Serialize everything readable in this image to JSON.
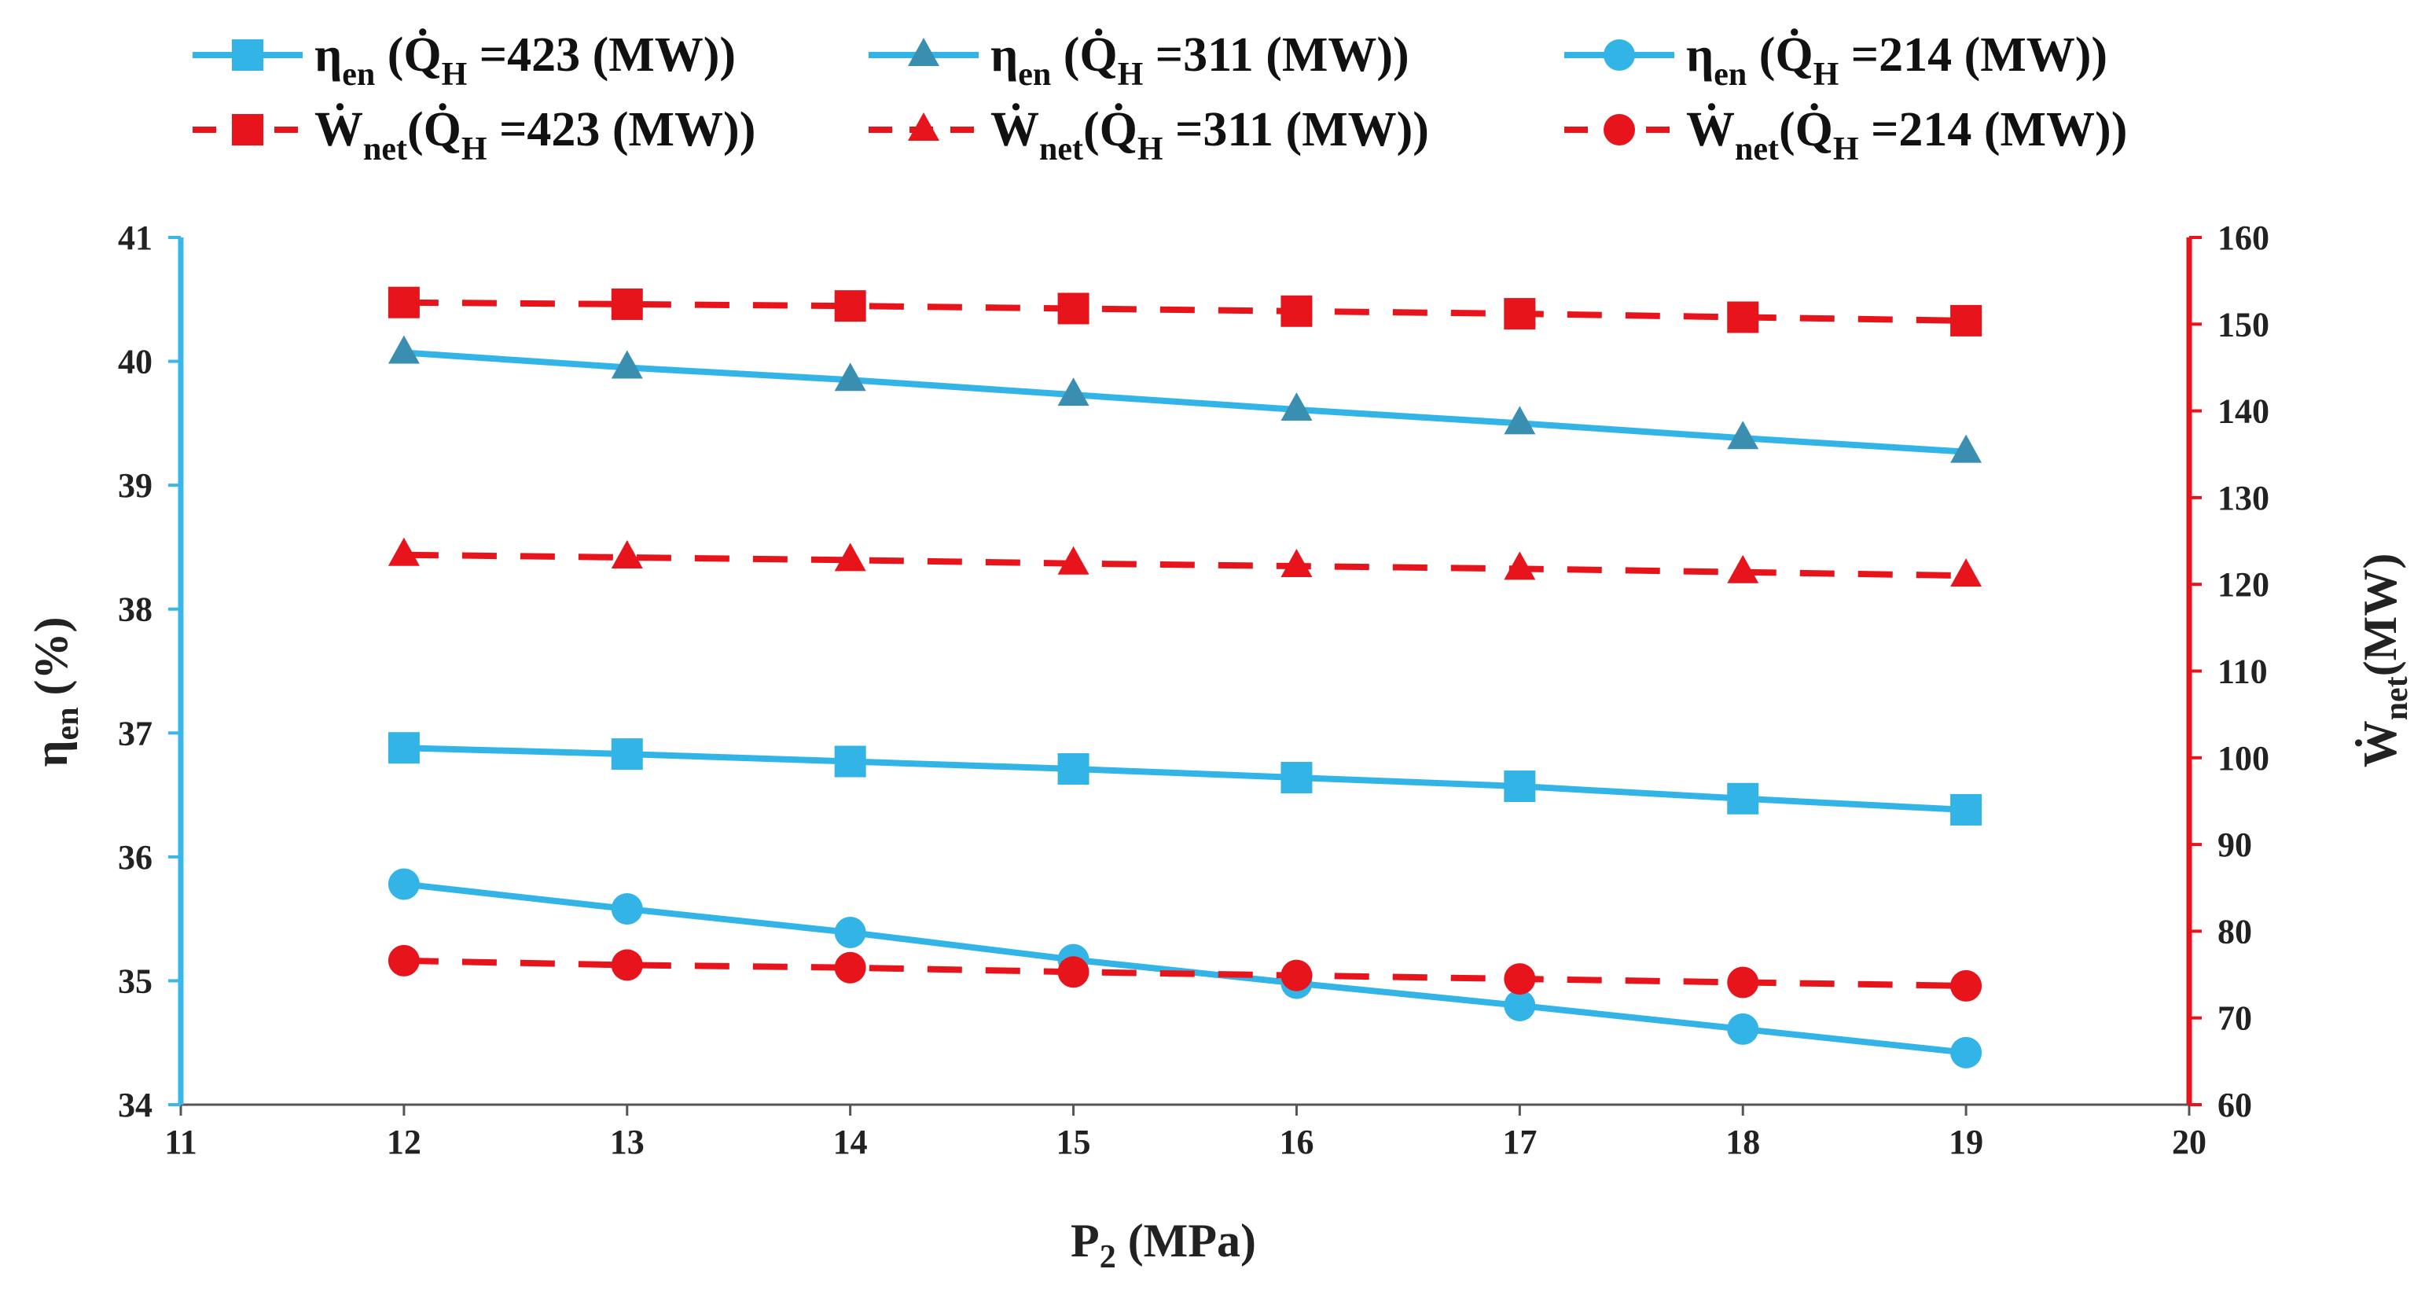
{
  "colors": {
    "blue": "#33B4E6",
    "blue_axis": "#3AB7E8",
    "red": "#E8141C",
    "teal_marker": "#3A8FB0",
    "text": "#222222"
  },
  "chart_data": {
    "type": "line",
    "x": [
      12,
      13,
      14,
      15,
      16,
      17,
      18,
      19
    ],
    "xlim": [
      11,
      20
    ],
    "xticks": [
      "11",
      "12",
      "13",
      "14",
      "15",
      "16",
      "17",
      "18",
      "19",
      "20"
    ],
    "xlabel": {
      "main": "P",
      "sub": "2",
      "rest": " (MPa)"
    },
    "ylim_left": [
      34,
      41
    ],
    "yticks_left": [
      "34",
      "35",
      "36",
      "37",
      "38",
      "39",
      "40",
      "41"
    ],
    "ylabel_left": {
      "main": "η",
      "sub": "en",
      "rest": " (%)"
    },
    "ylim_right": [
      60,
      160
    ],
    "yticks_right": [
      "60",
      "70",
      "80",
      "90",
      "100",
      "110",
      "120",
      "130",
      "140",
      "150",
      "160"
    ],
    "ylabel_right": {
      "main": "Ẇ",
      "sub": "net",
      "rest": "(MW)"
    },
    "series": [
      {
        "name": "η_en (Q̇_H =423 (MW))",
        "axis": "left",
        "marker": "square",
        "style": "solid",
        "values": [
          36.88,
          36.83,
          36.77,
          36.71,
          36.64,
          36.57,
          36.47,
          36.38
        ]
      },
      {
        "name": "η_en (Q̇_H =311 (MW))",
        "axis": "left",
        "marker": "triangle",
        "style": "solid",
        "values": [
          40.07,
          39.95,
          39.85,
          39.73,
          39.61,
          39.5,
          39.38,
          39.27
        ]
      },
      {
        "name": "η_en (Q̇_H =214 (MW))",
        "axis": "left",
        "marker": "circle",
        "style": "solid",
        "values": [
          35.78,
          35.58,
          35.39,
          35.17,
          34.98,
          34.8,
          34.61,
          34.42
        ]
      },
      {
        "name": "Ẇ_net (Q̇_H =423 (MW))",
        "axis": "right",
        "marker": "square",
        "style": "dashed",
        "values": [
          152.5,
          152.3,
          152.1,
          151.8,
          151.5,
          151.2,
          150.8,
          150.4
        ]
      },
      {
        "name": "Ẇ_net (Q̇_H =311 (MW))",
        "axis": "right",
        "marker": "triangle",
        "style": "dashed",
        "values": [
          123.4,
          123.1,
          122.8,
          122.4,
          122.1,
          121.8,
          121.4,
          121.0
        ]
      },
      {
        "name": "Ẇ_net (Q̇_H =214 (MW))",
        "axis": "right",
        "marker": "circle",
        "style": "dashed",
        "values": [
          76.6,
          76.1,
          75.8,
          75.3,
          74.9,
          74.5,
          74.1,
          73.7
        ]
      }
    ],
    "legend": {
      "placement": "top",
      "entries": [
        {
          "symbol": "η",
          "sub": "en",
          "q_label": "Q̇",
          "q_sub": "H",
          "value_text": " =423 (MW))",
          "open": " ("
        },
        {
          "symbol": "η",
          "sub": "en",
          "q_label": "Q̇",
          "q_sub": "H",
          "value_text": " =311 (MW))",
          "open": " ("
        },
        {
          "symbol": "η",
          "sub": "en",
          "q_label": "Q̇",
          "q_sub": "H",
          "value_text": " =214 (MW))",
          "open": " ("
        },
        {
          "symbol": "Ẇ",
          "sub": "net",
          "q_label": "Q̇",
          "q_sub": "H",
          "value_text": " =423 (MW))",
          "open": "("
        },
        {
          "symbol": "Ẇ",
          "sub": "net",
          "q_label": "Q̇",
          "q_sub": "H",
          "value_text": " =311 (MW))",
          "open": "("
        },
        {
          "symbol": "Ẇ",
          "sub": "net",
          "q_label": "Q̇",
          "q_sub": "H",
          "value_text": " =214 (MW))",
          "open": "("
        }
      ]
    }
  }
}
